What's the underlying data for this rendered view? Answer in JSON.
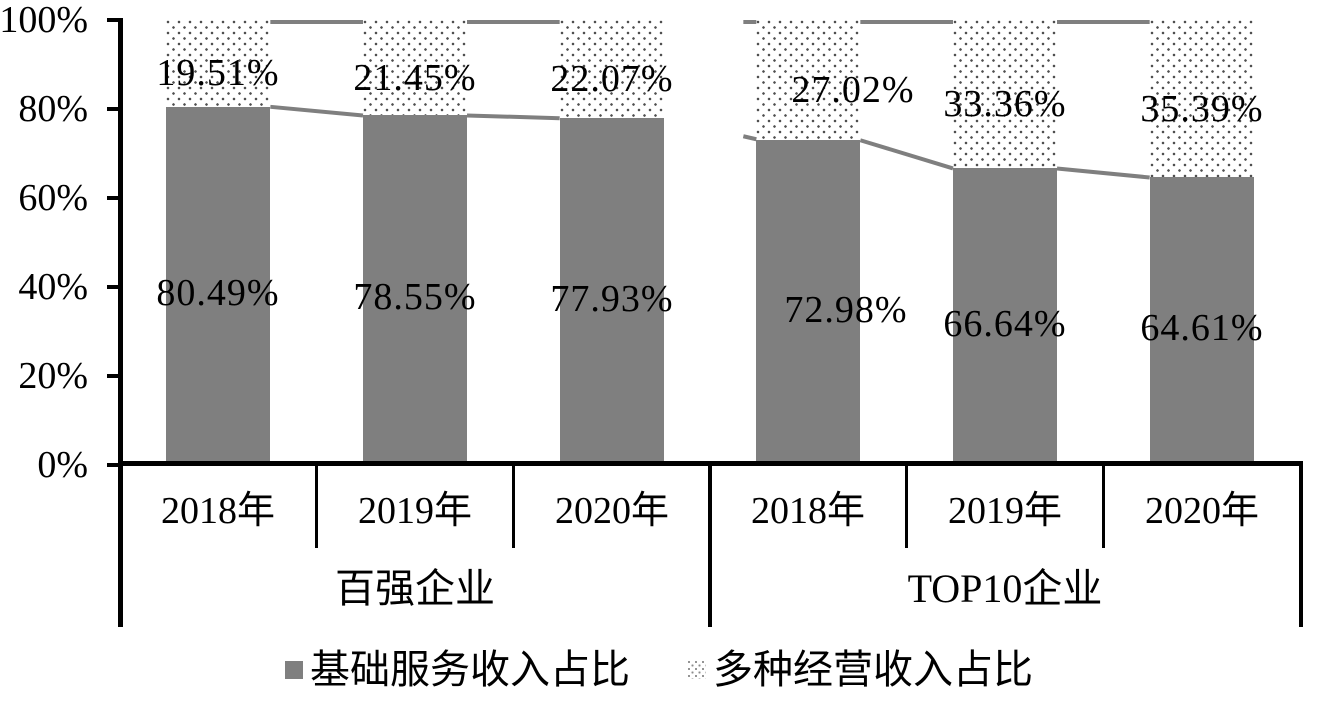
{
  "chart_data": {
    "type": "bar",
    "subtype": "stacked-100-percent",
    "title": "",
    "unit": "%",
    "grid": false,
    "legend_position": "bottom",
    "series_lines": true,
    "y_axis": {
      "min": 0,
      "max": 100,
      "tick_step": 20,
      "tick_labels": [
        "0%",
        "20%",
        "40%",
        "60%",
        "80%",
        "100%"
      ]
    },
    "group_labels": [
      "百强企业",
      "TOP10企业"
    ],
    "categories": [
      "2018年",
      "2019年",
      "2020年",
      "2018年",
      "2019年",
      "2020年"
    ],
    "series": [
      {
        "name": "基础服务收入占比",
        "swatch": "solid-gray",
        "values": [
          80.49,
          78.55,
          77.93,
          72.98,
          66.64,
          64.61
        ],
        "labels": [
          "80.49%",
          "78.55%",
          "77.93%",
          "72.98%",
          "66.64%",
          "64.61%"
        ]
      },
      {
        "name": "多种经营收入占比",
        "swatch": "dotted-pattern",
        "values": [
          19.51,
          21.45,
          22.07,
          27.02,
          33.36,
          35.39
        ],
        "labels": [
          "19.51%",
          "21.45%",
          "22.07%",
          "27.02%",
          "33.36%",
          "35.39%"
        ]
      }
    ],
    "colors": {
      "bar_gray": "#7f7f7f",
      "series_line": "#7f7f7f",
      "pattern_dot": "#4f4f4f",
      "axis": "#000000",
      "label_text": "#000000"
    }
  }
}
